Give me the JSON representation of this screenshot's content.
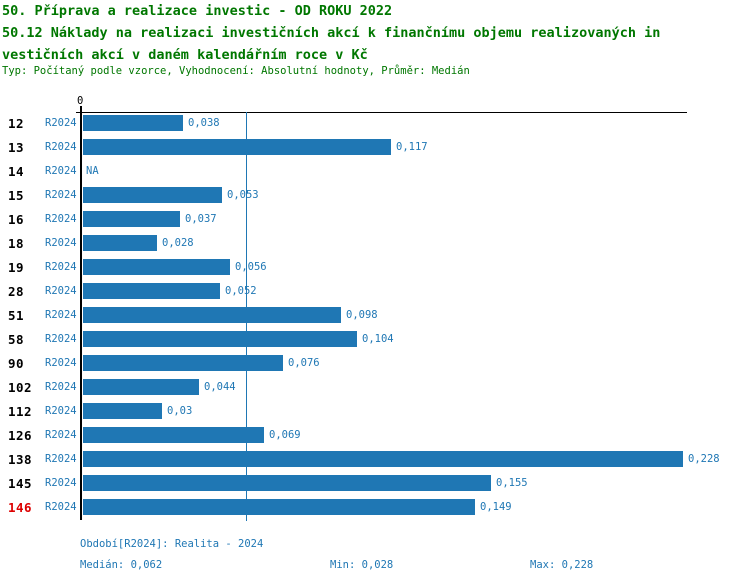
{
  "header": {
    "title_lines": [
      "50. Příprava a realizace investic - OD ROKU 2022",
      "50.12 Náklady na realizaci investičních akcí k finančnímu objemu realizovaných in",
      "vestičních akcí v daném kalendářním roce v Kč"
    ],
    "meta_line": "Typ: Počítaný podle vzorce, Vyhodnocení: Absolutní hodnoty, Průměr: Medián"
  },
  "chart_data": {
    "type": "bar",
    "orientation": "horizontal",
    "title": "50.12 Náklady na realizaci investičních akcí k finančnímu objemu realizovaných investičních akcí v daném kalendářním roce v Kč",
    "x_axis": {
      "zero_label": "0",
      "xlim": [
        0,
        0.235
      ],
      "grid": false
    },
    "median_line_value": 0.062,
    "series_name": "R2024",
    "categories": [
      "12",
      "13",
      "14",
      "15",
      "16",
      "18",
      "19",
      "28",
      "51",
      "58",
      "90",
      "102",
      "112",
      "126",
      "138",
      "145",
      "146"
    ],
    "rows": [
      {
        "category": "12",
        "period": "R2024",
        "value": 0.038,
        "value_label": "0,038",
        "highlight": false
      },
      {
        "category": "13",
        "period": "R2024",
        "value": 0.117,
        "value_label": "0,117",
        "highlight": false
      },
      {
        "category": "14",
        "period": "R2024",
        "value": null,
        "value_label": "NA",
        "highlight": false
      },
      {
        "category": "15",
        "period": "R2024",
        "value": 0.053,
        "value_label": "0,053",
        "highlight": false
      },
      {
        "category": "16",
        "period": "R2024",
        "value": 0.037,
        "value_label": "0,037",
        "highlight": false
      },
      {
        "category": "18",
        "period": "R2024",
        "value": 0.028,
        "value_label": "0,028",
        "highlight": false
      },
      {
        "category": "19",
        "period": "R2024",
        "value": 0.056,
        "value_label": "0,056",
        "highlight": false
      },
      {
        "category": "28",
        "period": "R2024",
        "value": 0.052,
        "value_label": "0,052",
        "highlight": false
      },
      {
        "category": "51",
        "period": "R2024",
        "value": 0.098,
        "value_label": "0,098",
        "highlight": false
      },
      {
        "category": "58",
        "period": "R2024",
        "value": 0.104,
        "value_label": "0,104",
        "highlight": false
      },
      {
        "category": "90",
        "period": "R2024",
        "value": 0.076,
        "value_label": "0,076",
        "highlight": false
      },
      {
        "category": "102",
        "period": "R2024",
        "value": 0.044,
        "value_label": "0,044",
        "highlight": false
      },
      {
        "category": "112",
        "period": "R2024",
        "value": 0.03,
        "value_label": "0,03",
        "highlight": false
      },
      {
        "category": "126",
        "period": "R2024",
        "value": 0.069,
        "value_label": "0,069",
        "highlight": false
      },
      {
        "category": "138",
        "period": "R2024",
        "value": 0.228,
        "value_label": "0,228",
        "highlight": false
      },
      {
        "category": "145",
        "period": "R2024",
        "value": 0.155,
        "value_label": "0,155",
        "highlight": false
      },
      {
        "category": "146",
        "period": "R2024",
        "value": 0.149,
        "value_label": "0,149",
        "highlight": true
      }
    ]
  },
  "footer": {
    "period_info": "Období[R2024]: Realita - 2024",
    "stats": [
      {
        "label": "Medián:",
        "value": "0,062"
      },
      {
        "label": "Min:",
        "value": "0,028"
      },
      {
        "label": "Max:",
        "value": "0,228"
      }
    ]
  },
  "colors": {
    "bar_blue": "#1f77b4",
    "title_green": "#007700",
    "highlight_red": "#dd0000",
    "axis_black": "#000000"
  }
}
